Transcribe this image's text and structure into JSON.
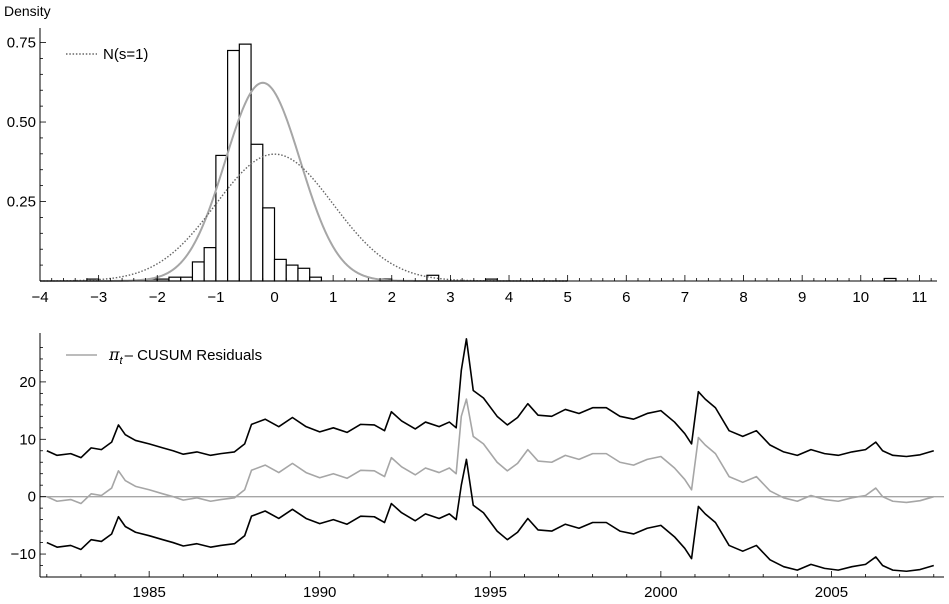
{
  "chart_data": [
    {
      "type": "bar",
      "ylabel": "Density",
      "xlim": [
        -4,
        11.3
      ],
      "ylim": [
        0,
        0.78
      ],
      "x_ticks": [
        -4,
        -3,
        -2,
        -1,
        0,
        1,
        2,
        3,
        4,
        5,
        6,
        7,
        8,
        9,
        10,
        11
      ],
      "y_ticks": [
        0.25,
        0.5,
        0.75
      ],
      "y_tick_labels": [
        "0.25",
        "0.50",
        "0.75"
      ],
      "legend": {
        "label": "N(s=1)",
        "position": "top-left"
      },
      "histogram": {
        "bin_width": 0.2,
        "bins": [
          {
            "x0": -3.2,
            "value": 0.006
          },
          {
            "x0": -2.2,
            "value": 0.006
          },
          {
            "x0": -2.0,
            "value": 0.006
          },
          {
            "x0": -1.8,
            "value": 0.012
          },
          {
            "x0": -1.6,
            "value": 0.012
          },
          {
            "x0": -1.4,
            "value": 0.06
          },
          {
            "x0": -1.2,
            "value": 0.105
          },
          {
            "x0": -1.0,
            "value": 0.395
          },
          {
            "x0": -0.8,
            "value": 0.725
          },
          {
            "x0": -0.6,
            "value": 0.745
          },
          {
            "x0": -0.4,
            "value": 0.43
          },
          {
            "x0": -0.2,
            "value": 0.23
          },
          {
            "x0": 0.0,
            "value": 0.068
          },
          {
            "x0": 0.2,
            "value": 0.05
          },
          {
            "x0": 0.4,
            "value": 0.04
          },
          {
            "x0": 0.6,
            "value": 0.012
          },
          {
            "x0": 1.8,
            "value": 0.006
          },
          {
            "x0": 2.6,
            "value": 0.018
          },
          {
            "x0": 3.6,
            "value": 0.006
          },
          {
            "x0": 10.4,
            "value": 0.008
          }
        ]
      },
      "curves": [
        {
          "kind": "fitted_density",
          "style": "solid",
          "color": "#a6a6a6",
          "mean": -0.2,
          "sd": 0.64
        },
        {
          "name": "N(s=1)",
          "kind": "normal",
          "style": "dotted",
          "color": "#666666",
          "mean": 0,
          "sd": 1
        }
      ]
    },
    {
      "type": "line",
      "xlim": [
        1981.8,
        2008.3
      ],
      "ylim": [
        -14,
        28
      ],
      "x_ticks": [
        1985,
        1990,
        1995,
        2000,
        2005
      ],
      "y_ticks": [
        -10,
        0,
        10,
        20
      ],
      "legend": {
        "label": "π",
        "subscript": "t",
        "suffix": "– CUSUM Residuals",
        "position": "top-left"
      },
      "zero_line": {
        "y": 0,
        "color": "#a6a6a6"
      },
      "series": [
        {
          "name": "π t – CUSUM Residuals",
          "color": "#a6a6a6",
          "x": [
            1982.0,
            1982.3,
            1982.7,
            1983.0,
            1983.3,
            1983.6,
            1983.9,
            1984.1,
            1984.3,
            1984.6,
            1985.0,
            1985.4,
            1985.7,
            1986.0,
            1986.4,
            1986.8,
            1987.1,
            1987.5,
            1987.8,
            1988.0,
            1988.4,
            1988.8,
            1989.2,
            1989.6,
            1990.0,
            1990.4,
            1990.8,
            1991.2,
            1991.6,
            1991.9,
            1992.1,
            1992.4,
            1992.8,
            1993.1,
            1993.5,
            1993.8,
            1994.0,
            1994.15,
            1994.3,
            1994.5,
            1994.8,
            1995.2,
            1995.5,
            1995.8,
            1996.1,
            1996.4,
            1996.8,
            1997.2,
            1997.6,
            1998.0,
            1998.4,
            1998.8,
            1999.2,
            1999.6,
            2000.0,
            2000.4,
            2000.7,
            2000.9,
            2001.1,
            2001.3,
            2001.6,
            2002.0,
            2002.4,
            2002.8,
            2003.2,
            2003.6,
            2004.0,
            2004.4,
            2004.8,
            2005.2,
            2005.6,
            2006.0,
            2006.3,
            2006.5,
            2006.8,
            2007.2,
            2007.6,
            2008.0
          ],
          "y": [
            0,
            -0.8,
            -0.5,
            -1.2,
            0.5,
            0.2,
            1.5,
            4.5,
            2.8,
            1.8,
            1.2,
            0.5,
            0,
            -0.6,
            -0.2,
            -0.8,
            -0.5,
            -0.2,
            1.2,
            4.6,
            5.5,
            4.2,
            5.8,
            4.2,
            3.3,
            4.0,
            3.2,
            4.6,
            4.5,
            3.5,
            6.8,
            5.2,
            3.8,
            5.0,
            4.2,
            5.0,
            4.0,
            14.0,
            17.0,
            10.5,
            9.2,
            6.0,
            4.5,
            5.8,
            8.2,
            6.2,
            6.0,
            7.2,
            6.5,
            7.5,
            7.5,
            6.0,
            5.5,
            6.5,
            7.0,
            5.0,
            3.0,
            1.2,
            10.3,
            9.0,
            7.5,
            3.5,
            2.5,
            3.5,
            1.0,
            -0.2,
            -0.8,
            0.2,
            -0.5,
            -0.8,
            -0.2,
            0.2,
            1.5,
            0,
            -0.8,
            -1.0,
            -0.7,
            0
          ]
        },
        {
          "name": "upper band",
          "color": "#000000",
          "x": [
            1982.0,
            1982.3,
            1982.7,
            1983.0,
            1983.3,
            1983.6,
            1983.9,
            1984.1,
            1984.3,
            1984.6,
            1985.0,
            1985.4,
            1985.7,
            1986.0,
            1986.4,
            1986.8,
            1987.1,
            1987.5,
            1987.8,
            1988.0,
            1988.4,
            1988.8,
            1989.2,
            1989.6,
            1990.0,
            1990.4,
            1990.8,
            1991.2,
            1991.6,
            1991.9,
            1992.1,
            1992.4,
            1992.8,
            1993.1,
            1993.5,
            1993.8,
            1994.0,
            1994.15,
            1994.3,
            1994.5,
            1994.8,
            1995.2,
            1995.5,
            1995.8,
            1996.1,
            1996.4,
            1996.8,
            1997.2,
            1997.6,
            1998.0,
            1998.4,
            1998.8,
            1999.2,
            1999.6,
            2000.0,
            2000.4,
            2000.7,
            2000.9,
            2001.1,
            2001.3,
            2001.6,
            2002.0,
            2002.4,
            2002.8,
            2003.2,
            2003.6,
            2004.0,
            2004.4,
            2004.8,
            2005.2,
            2005.6,
            2006.0,
            2006.3,
            2006.5,
            2006.8,
            2007.2,
            2007.6,
            2008.0
          ],
          "y": [
            8,
            7.2,
            7.5,
            6.8,
            8.5,
            8.2,
            9.5,
            12.5,
            10.8,
            9.8,
            9.2,
            8.5,
            8,
            7.4,
            7.8,
            7.2,
            7.5,
            7.8,
            9.2,
            12.6,
            13.5,
            12.2,
            13.8,
            12.2,
            11.3,
            12.0,
            11.2,
            12.6,
            12.5,
            11.5,
            14.8,
            13.2,
            11.8,
            13.0,
            12.2,
            13.0,
            12.0,
            22.0,
            27.5,
            18.5,
            17.2,
            14.0,
            12.5,
            13.8,
            16.2,
            14.2,
            14.0,
            15.2,
            14.5,
            15.5,
            15.5,
            14.0,
            13.5,
            14.5,
            15.0,
            13.0,
            11.0,
            9.2,
            18.3,
            17.0,
            15.5,
            11.5,
            10.5,
            11.5,
            9.0,
            7.8,
            7.2,
            8.2,
            7.5,
            7.2,
            7.8,
            8.2,
            9.5,
            8.0,
            7.2,
            7.0,
            7.3,
            8.0
          ]
        },
        {
          "name": "lower band",
          "color": "#000000",
          "x": [
            1982.0,
            1982.3,
            1982.7,
            1983.0,
            1983.3,
            1983.6,
            1983.9,
            1984.1,
            1984.3,
            1984.6,
            1985.0,
            1985.4,
            1985.7,
            1986.0,
            1986.4,
            1986.8,
            1987.1,
            1987.5,
            1987.8,
            1988.0,
            1988.4,
            1988.8,
            1989.2,
            1989.6,
            1990.0,
            1990.4,
            1990.8,
            1991.2,
            1991.6,
            1991.9,
            1992.1,
            1992.4,
            1992.8,
            1993.1,
            1993.5,
            1993.8,
            1994.0,
            1994.15,
            1994.3,
            1994.5,
            1994.8,
            1995.2,
            1995.5,
            1995.8,
            1996.1,
            1996.4,
            1996.8,
            1997.2,
            1997.6,
            1998.0,
            1998.4,
            1998.8,
            1999.2,
            1999.6,
            2000.0,
            2000.4,
            2000.7,
            2000.9,
            2001.1,
            2001.3,
            2001.6,
            2002.0,
            2002.4,
            2002.8,
            2003.2,
            2003.6,
            2004.0,
            2004.4,
            2004.8,
            2005.2,
            2005.6,
            2006.0,
            2006.3,
            2006.5,
            2006.8,
            2007.2,
            2007.6,
            2008.0
          ],
          "y": [
            -8,
            -8.8,
            -8.5,
            -9.2,
            -7.5,
            -7.8,
            -6.5,
            -3.5,
            -5.2,
            -6.2,
            -6.8,
            -7.5,
            -8,
            -8.6,
            -8.2,
            -8.8,
            -8.5,
            -8.2,
            -6.8,
            -3.4,
            -2.5,
            -3.8,
            -2.2,
            -3.8,
            -4.7,
            -4.0,
            -4.8,
            -3.4,
            -3.5,
            -4.5,
            -1.2,
            -2.8,
            -4.2,
            -3.0,
            -3.8,
            -3.0,
            -4.0,
            2.0,
            6.5,
            -1.5,
            -2.8,
            -6.0,
            -7.5,
            -6.2,
            -3.8,
            -5.8,
            -6.0,
            -4.8,
            -5.5,
            -4.5,
            -4.5,
            -6.0,
            -6.5,
            -5.5,
            -5.0,
            -7.0,
            -9.0,
            -10.8,
            -1.7,
            -3.0,
            -4.5,
            -8.5,
            -9.5,
            -8.5,
            -11.0,
            -12.2,
            -12.8,
            -11.8,
            -12.5,
            -12.8,
            -12.2,
            -11.8,
            -10.5,
            -12.0,
            -12.8,
            -13.0,
            -12.7,
            -12.0
          ]
        }
      ]
    }
  ]
}
